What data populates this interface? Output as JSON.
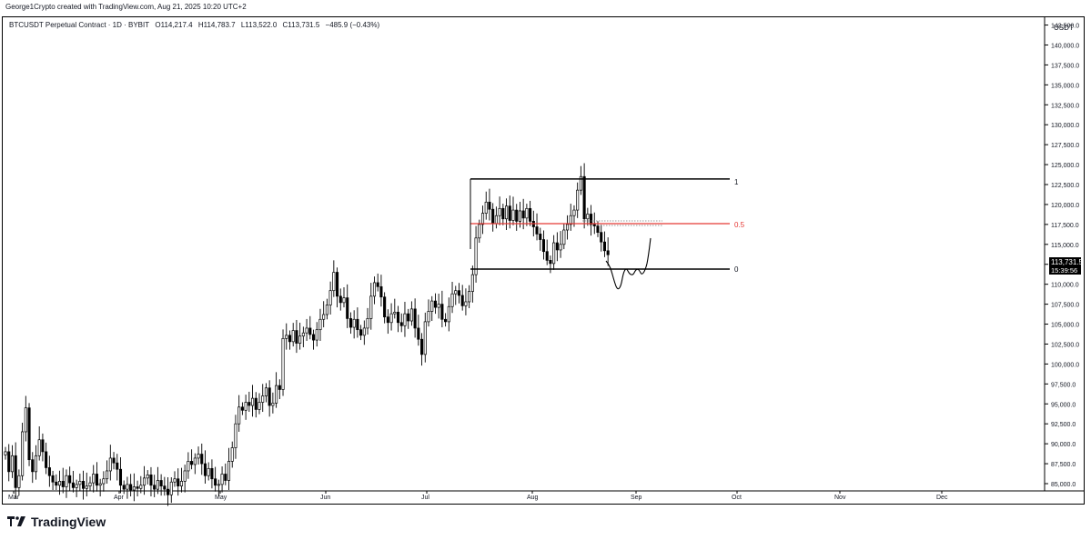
{
  "header": {
    "credit": "George1Crypto created with TradingView.com, Aug 21, 2025 10:20 UTC+2",
    "symbol_line": "BTCUSDT Perpetual Contract · 1D · BYBIT",
    "open": "O114,217.4",
    "high": "H114,783.7",
    "low": "L113,522.0",
    "close": "C113,731.5",
    "change": "−485.9 (−0.43%)"
  },
  "price_axis": {
    "currency": "USDT",
    "current_price": "113,731.5",
    "countdown": "15:39:56"
  },
  "fib_labels": {
    "top": "1",
    "mid": "0.5",
    "bottom": "0"
  },
  "footer": {
    "brand": "TradingView"
  },
  "colors": {
    "up": "#000000",
    "down": "#000000",
    "fib_mid": "#e53935",
    "fib_line": "#000000"
  },
  "chart_data": {
    "type": "candlestick",
    "symbol": "BTCUSDT",
    "interval": "1D",
    "x_ticks": [
      "Mar",
      "Apr",
      "May",
      "Jun",
      "Jul",
      "Aug",
      "Sep",
      "Oct",
      "Nov",
      "Dec"
    ],
    "y_ticks": [
      "85,000.0",
      "87,500.0",
      "90,000.0",
      "92,500.0",
      "95,000.0",
      "97,500.0",
      "100,000.0",
      "102,500.0",
      "105,000.0",
      "107,500.0",
      "110,000.0",
      "112,500.0",
      "115,000.0",
      "117,500.0",
      "120,000.0",
      "122,500.0",
      "125,000.0",
      "127,500.0",
      "130,000.0",
      "132,500.0",
      "135,000.0",
      "137,500.0",
      "140,000.0",
      "142,500.0"
    ],
    "ylim": [
      85000,
      144500
    ],
    "fib_levels": [
      {
        "level": "1",
        "price": 123200
      },
      {
        "level": "0.5",
        "price": 117600
      },
      {
        "level": "0",
        "price": 111900
      }
    ],
    "candles_close": [
      89000,
      86500,
      88500,
      84500,
      86000,
      91500,
      94500,
      88000,
      86500,
      88500,
      90500,
      89000,
      87000,
      86000,
      85200,
      84800,
      85300,
      84600,
      86000,
      85100,
      84500,
      84900,
      85300,
      84400,
      84700,
      85100,
      86200,
      84800,
      85000,
      85600,
      86600,
      88200,
      87600,
      86800,
      84800,
      84300,
      84900,
      84200,
      84600,
      84400,
      84800,
      85700,
      86100,
      84800,
      84300,
      85400,
      84700,
      84300,
      83600,
      85200,
      85600,
      84700,
      85300,
      86600,
      87800,
      87400,
      88200,
      88700,
      87500,
      86000,
      86900,
      85600,
      84800,
      84900,
      86200,
      85400,
      87800,
      89500,
      92500,
      94600,
      94200,
      95200,
      94800,
      95700,
      94300,
      95200,
      96000,
      97000,
      94800,
      95100,
      97300,
      96800,
      103200,
      103600,
      102800,
      104200,
      102600,
      103500,
      103900,
      104500,
      103700,
      103000,
      104300,
      105600,
      106200,
      107400,
      109200,
      111500,
      108500,
      107700,
      108300,
      105700,
      104600,
      105600,
      104300,
      103600,
      104500,
      105700,
      108500,
      110200,
      109700,
      108400,
      105900,
      105200,
      106300,
      106500,
      105200,
      104800,
      106300,
      105400,
      106900,
      104500,
      103100,
      101200,
      105300,
      106600,
      107900,
      107100,
      107500,
      105600,
      105300,
      107200,
      108800,
      109200,
      108600,
      107300,
      107800,
      109100,
      111200,
      115800,
      117500,
      118900,
      120300,
      119400,
      117600,
      118600,
      119500,
      118200,
      119800,
      118000,
      119300,
      117900,
      119200,
      118300,
      119500,
      117900,
      117200,
      116300,
      115600,
      114100,
      113000,
      112600,
      115200,
      114300,
      115000,
      116800,
      117500,
      118600,
      119300,
      121800,
      123500,
      118200,
      118800,
      117500,
      117300,
      116500,
      115300,
      114200,
      113700
    ],
    "projection_path_note": "hand-drawn projected path"
  }
}
